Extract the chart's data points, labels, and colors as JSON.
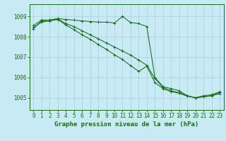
{
  "background_color": "#c8eaf4",
  "grid_color": "#b0d4dc",
  "line_color": "#1a6b1a",
  "xlabel": "Graphe pression niveau de la mer (hPa)",
  "xlabel_fontsize": 6.5,
  "tick_fontsize": 5.5,
  "ytick_labels": [
    1005,
    1006,
    1007,
    1008,
    1009
  ],
  "ylim": [
    1004.4,
    1009.6
  ],
  "xlim": [
    -0.5,
    23.5
  ],
  "xtick_labels": [
    "0",
    "1",
    "2",
    "3",
    "4",
    "5",
    "6",
    "7",
    "8",
    "9",
    "10",
    "11",
    "12",
    "13",
    "14",
    "15",
    "16",
    "17",
    "18",
    "19",
    "20",
    "21",
    "22",
    "23"
  ],
  "line1_x": [
    0,
    1,
    2,
    3,
    4,
    5,
    6,
    7,
    8,
    9,
    10,
    11,
    12,
    13,
    14,
    15,
    16,
    17,
    18,
    19,
    20,
    21,
    22,
    23
  ],
  "line1_y": [
    1008.55,
    1008.82,
    1008.82,
    1008.9,
    1008.85,
    1008.82,
    1008.78,
    1008.75,
    1008.72,
    1008.72,
    1008.68,
    1009.0,
    1008.7,
    1008.65,
    1008.5,
    1006.0,
    1005.55,
    1005.45,
    1005.35,
    1005.1,
    1005.0,
    1005.1,
    1005.15,
    1005.3
  ],
  "line2_x": [
    0,
    1,
    2,
    3,
    4,
    5,
    6,
    7,
    8,
    9,
    10,
    11,
    12,
    13,
    14,
    15,
    16,
    17,
    18,
    19,
    20,
    21,
    22,
    23
  ],
  "line2_y": [
    1008.4,
    1008.78,
    1008.82,
    1008.88,
    1008.65,
    1008.5,
    1008.3,
    1008.1,
    1007.9,
    1007.7,
    1007.5,
    1007.3,
    1007.1,
    1006.85,
    1006.6,
    1005.95,
    1005.5,
    1005.35,
    1005.25,
    1005.1,
    1005.0,
    1005.05,
    1005.1,
    1005.25
  ],
  "line3_x": [
    0,
    1,
    2,
    3,
    4,
    5,
    6,
    7,
    8,
    9,
    10,
    11,
    12,
    13,
    14,
    15,
    16,
    17,
    18,
    19,
    20,
    21,
    22,
    23
  ],
  "line3_y": [
    1008.45,
    1008.72,
    1008.78,
    1008.85,
    1008.58,
    1008.35,
    1008.1,
    1007.88,
    1007.62,
    1007.38,
    1007.12,
    1006.88,
    1006.58,
    1006.3,
    1006.55,
    1005.75,
    1005.45,
    1005.3,
    1005.22,
    1005.08,
    1005.0,
    1005.05,
    1005.1,
    1005.2
  ]
}
